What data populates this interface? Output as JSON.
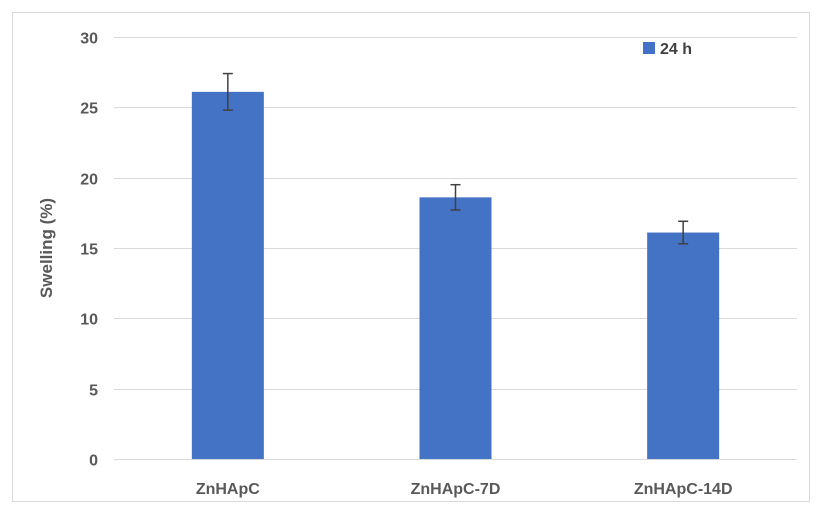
{
  "chart_data": {
    "type": "bar",
    "categories": [
      "ZnHApC",
      "ZnHApC-7D",
      "ZnHApC-14D"
    ],
    "series": [
      {
        "name": "24 h",
        "values": [
          26.1,
          18.6,
          16.1
        ],
        "errors": [
          1.3,
          0.9,
          0.8
        ],
        "color": "#4472c4"
      }
    ],
    "ylabel": "Swelling (%)",
    "xlabel": "",
    "ylim": [
      0,
      30
    ],
    "yticks": [
      0,
      5,
      10,
      15,
      20,
      25,
      30
    ],
    "grid": true,
    "legend_position": "top-right"
  }
}
